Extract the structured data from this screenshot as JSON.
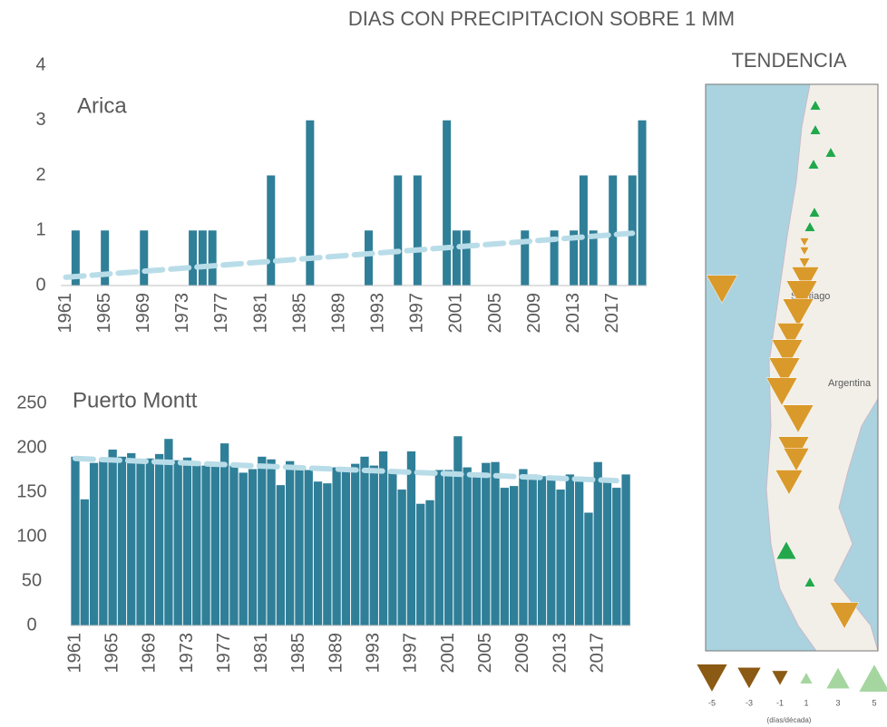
{
  "title": "DIAS CON PRECIPITACION SOBRE 1 MM",
  "chart_data": [
    {
      "type": "bar",
      "title": "Arica",
      "color": "#2f7f98",
      "trend_color": "#b9dde8",
      "categories": [
        "1961",
        null,
        null,
        null,
        "1965",
        null,
        null,
        null,
        "1969",
        null,
        null,
        null,
        "1973",
        null,
        null,
        null,
        "1977",
        null,
        null,
        null,
        "1981",
        null,
        null,
        null,
        "1985",
        null,
        null,
        null,
        "1989",
        null,
        null,
        null,
        "1993",
        null,
        null,
        null,
        "1997",
        null,
        null,
        null,
        "2001",
        null,
        null,
        null,
        "2005",
        null,
        null,
        null,
        "2009",
        null,
        null,
        null,
        "2013",
        null,
        null,
        null,
        "2017",
        null,
        null,
        null
      ],
      "values": [
        0,
        1,
        0,
        0,
        1,
        0,
        0,
        0,
        1,
        0,
        0,
        0,
        0,
        1,
        1,
        1,
        0,
        0,
        0,
        0,
        0,
        2,
        0,
        0,
        0,
        3,
        0,
        0,
        0,
        0,
        0,
        1,
        0,
        0,
        2,
        0,
        2,
        0,
        0,
        3,
        1,
        1,
        0,
        0,
        0,
        0,
        0,
        1,
        0,
        0,
        1,
        0,
        1,
        2,
        1,
        0,
        2,
        0,
        2,
        3
      ],
      "trend": [
        0.15,
        0.95
      ],
      "ylim": [
        0,
        4
      ],
      "yticks": [
        0,
        1,
        2,
        3,
        4
      ]
    },
    {
      "type": "bar",
      "title": "Puerto Montt",
      "color": "#2f7f98",
      "trend_color": "#b9dde8",
      "categories": [
        "1961",
        null,
        null,
        null,
        "1965",
        null,
        null,
        null,
        "1969",
        null,
        null,
        null,
        "1973",
        null,
        null,
        null,
        "1977",
        null,
        null,
        null,
        "1981",
        null,
        null,
        null,
        "1985",
        null,
        null,
        null,
        "1989",
        null,
        null,
        null,
        "1993",
        null,
        null,
        null,
        "1997",
        null,
        null,
        null,
        "2001",
        null,
        null,
        null,
        "2005",
        null,
        null,
        null,
        "2009",
        null,
        null,
        null,
        "2013",
        null,
        null,
        null,
        "2017",
        null,
        null,
        null
      ],
      "values": [
        190,
        142,
        183,
        185,
        198,
        190,
        194,
        185,
        188,
        193,
        210,
        186,
        189,
        180,
        180,
        183,
        205,
        180,
        172,
        176,
        190,
        187,
        158,
        185,
        178,
        175,
        162,
        160,
        178,
        176,
        182,
        190,
        180,
        196,
        172,
        153,
        196,
        137,
        141,
        175,
        175,
        213,
        178,
        168,
        183,
        184,
        155,
        157,
        176,
        170,
        168,
        165,
        153,
        170,
        165,
        127,
        184,
        162,
        155,
        170
      ],
      "trend": [
        188,
        163
      ],
      "ylim": [
        0,
        250
      ],
      "yticks": [
        0,
        50,
        100,
        150,
        200,
        250
      ]
    }
  ],
  "map": {
    "title": "TENDENCIA",
    "places": [
      "Santiago",
      "Argentina"
    ],
    "legend": [
      "-5",
      "-3",
      "-1",
      "1",
      "3",
      "5"
    ],
    "legend_unit": "(días/década)"
  }
}
